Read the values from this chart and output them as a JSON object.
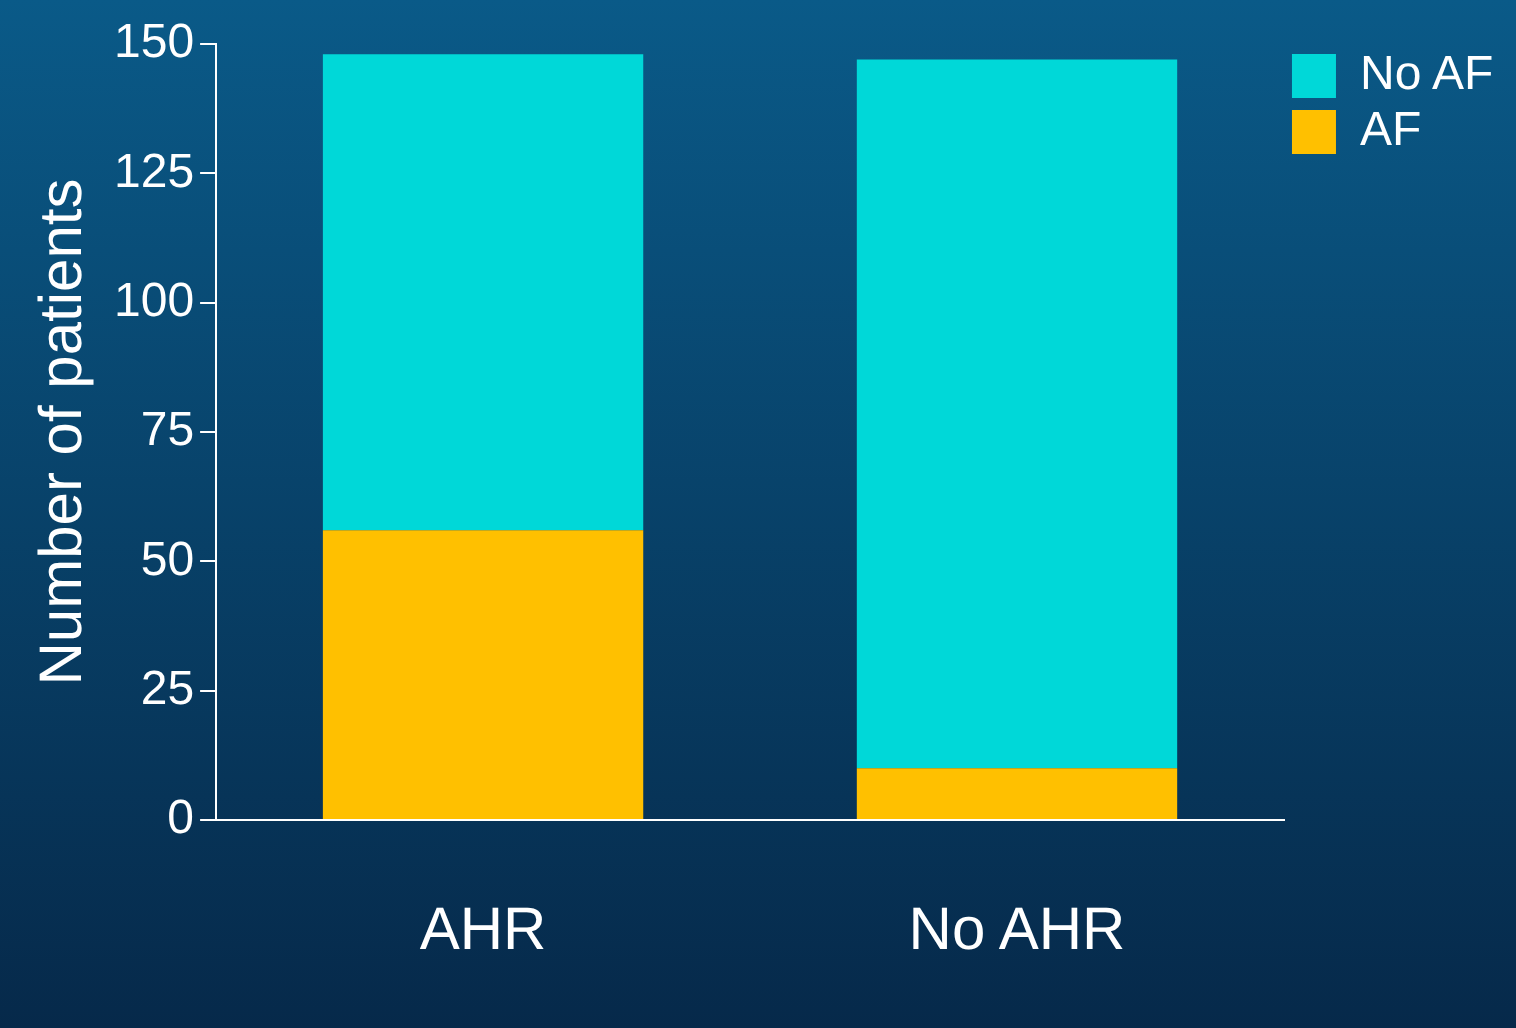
{
  "chart_data": {
    "type": "bar",
    "ylabel": "Number of patients",
    "categories": [
      "AHR",
      "No AHR"
    ],
    "stacked": true,
    "series": [
      {
        "name": "AF",
        "color": "#ffc000",
        "values": [
          56,
          10
        ]
      },
      {
        "name": "No AF",
        "color": "#00d8d8",
        "values": [
          92,
          137
        ]
      }
    ],
    "ylim": [
      0,
      150
    ],
    "yticks": [
      0,
      25,
      50,
      75,
      100,
      125,
      150
    ],
    "grid": false,
    "legend": "top right"
  }
}
